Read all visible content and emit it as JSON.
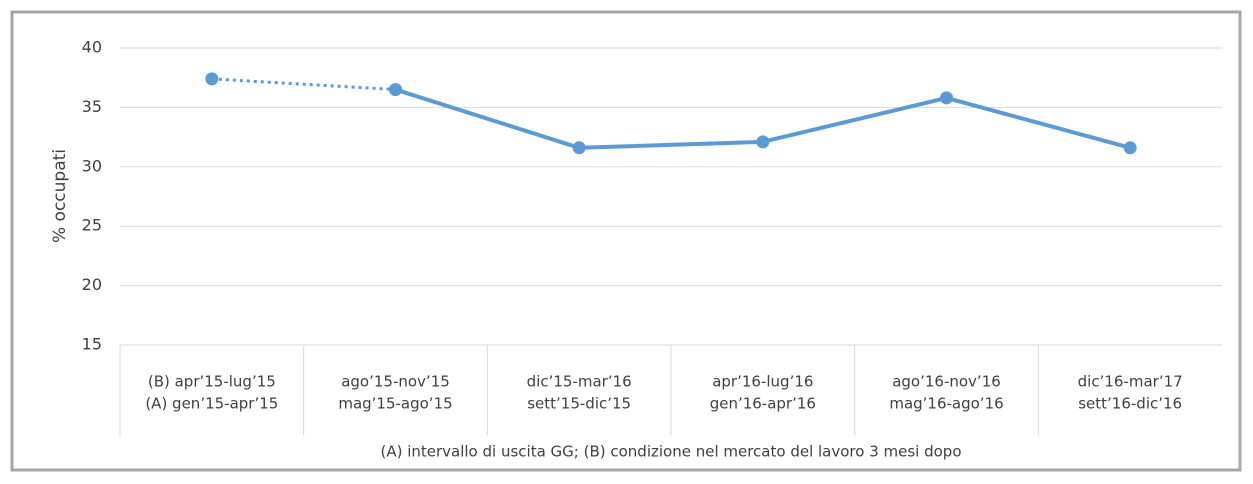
{
  "chart_data": {
    "type": "line",
    "y_label": "% occupati",
    "x_label": "(A) intervallo di uscita GG; (B) condizione nel mercato del lavoro 3 mesi dopo",
    "categories": [
      [
        "(B) apr’15-lug’15",
        "(A) gen’15-apr’15"
      ],
      [
        "ago’15-nov’15",
        "mag’15-ago’15"
      ],
      [
        "dic’15-mar’16",
        "sett’15-dic’15"
      ],
      [
        "apr’16-lug’16",
        "gen’16-apr’16"
      ],
      [
        "ago’16-nov’16",
        "mag’16-ago’16"
      ],
      [
        "dic’16-mar’17",
        "sett’16-dic’16"
      ]
    ],
    "series": [
      {
        "color": "#5b9bd5",
        "style": "dotted",
        "values": [
          37.4,
          36.5,
          null,
          null,
          null,
          null
        ]
      },
      {
        "color": "#5b9bd5",
        "style": "solid",
        "values": [
          null,
          36.5,
          31.6,
          32.1,
          35.8,
          31.6
        ]
      }
    ],
    "ylim": [
      15,
      40
    ],
    "yticks": [
      15,
      20,
      25,
      30,
      35,
      40
    ],
    "grid": true
  }
}
